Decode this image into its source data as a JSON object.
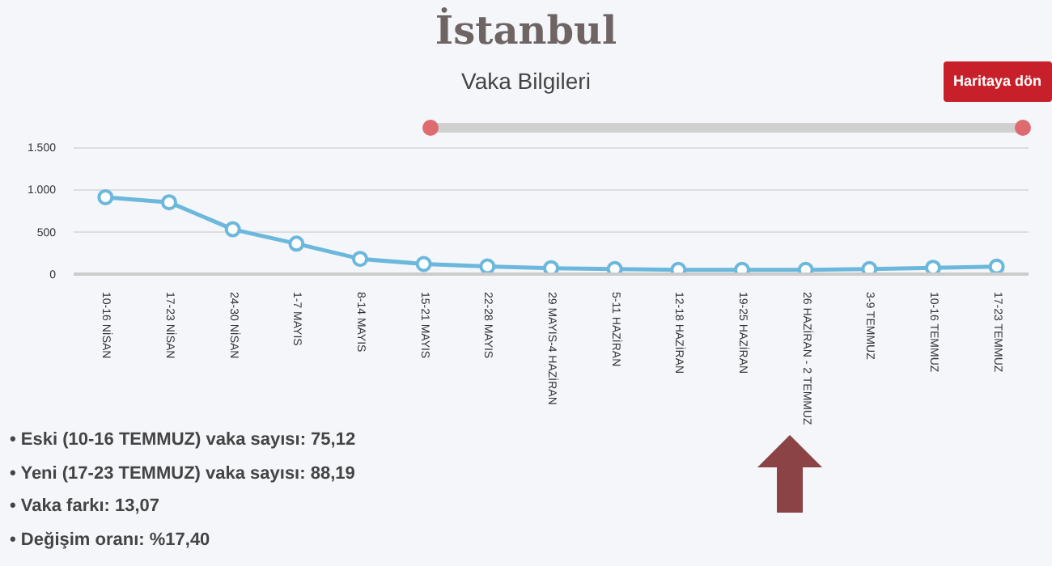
{
  "chart_data": {
    "type": "line",
    "title": "İstanbul",
    "subtitle": "Vaka Bilgileri",
    "categories": [
      "10-16 NİSAN",
      "17-23 NİSAN",
      "24-30 NİSAN",
      "1-7 MAYIS",
      "8-14 MAYIS",
      "15-21 MAYIS",
      "22-28 MAYIS",
      "29 MAYIS-4 HAZİRAN",
      "5-11 HAZİRAN",
      "12-18 HAZİRAN",
      "19-25 HAZİRAN",
      "26 HAZİRAN - 2 TEMMUZ",
      "3-9 TEMMUZ",
      "10-16 TEMMUZ",
      "17-23 TEMMUZ"
    ],
    "values": [
      910,
      850,
      530,
      360,
      180,
      120,
      90,
      70,
      60,
      50,
      50,
      50,
      60,
      75.12,
      88.19
    ],
    "color": "#6bb8dc",
    "ylim": [
      0,
      1550
    ],
    "yticks": [
      0,
      {
        "value": 500,
        "label": "500"
      },
      {
        "value": 1000,
        "label": "1.000"
      },
      {
        "value": 1500,
        "label": "1.500"
      }
    ],
    "grid": "y",
    "marker": "circle",
    "annotations": [
      "Haritaya dön",
      "•  Eski (10-16 TEMMUZ) vaka sayısı: 75,12",
      "•  Yeni (17-23 TEMMUZ) vaka sayısı: 88,19",
      "•  Vaka farkı: 13,07",
      "•  Değişim oranı: %17,40"
    ]
  }
}
